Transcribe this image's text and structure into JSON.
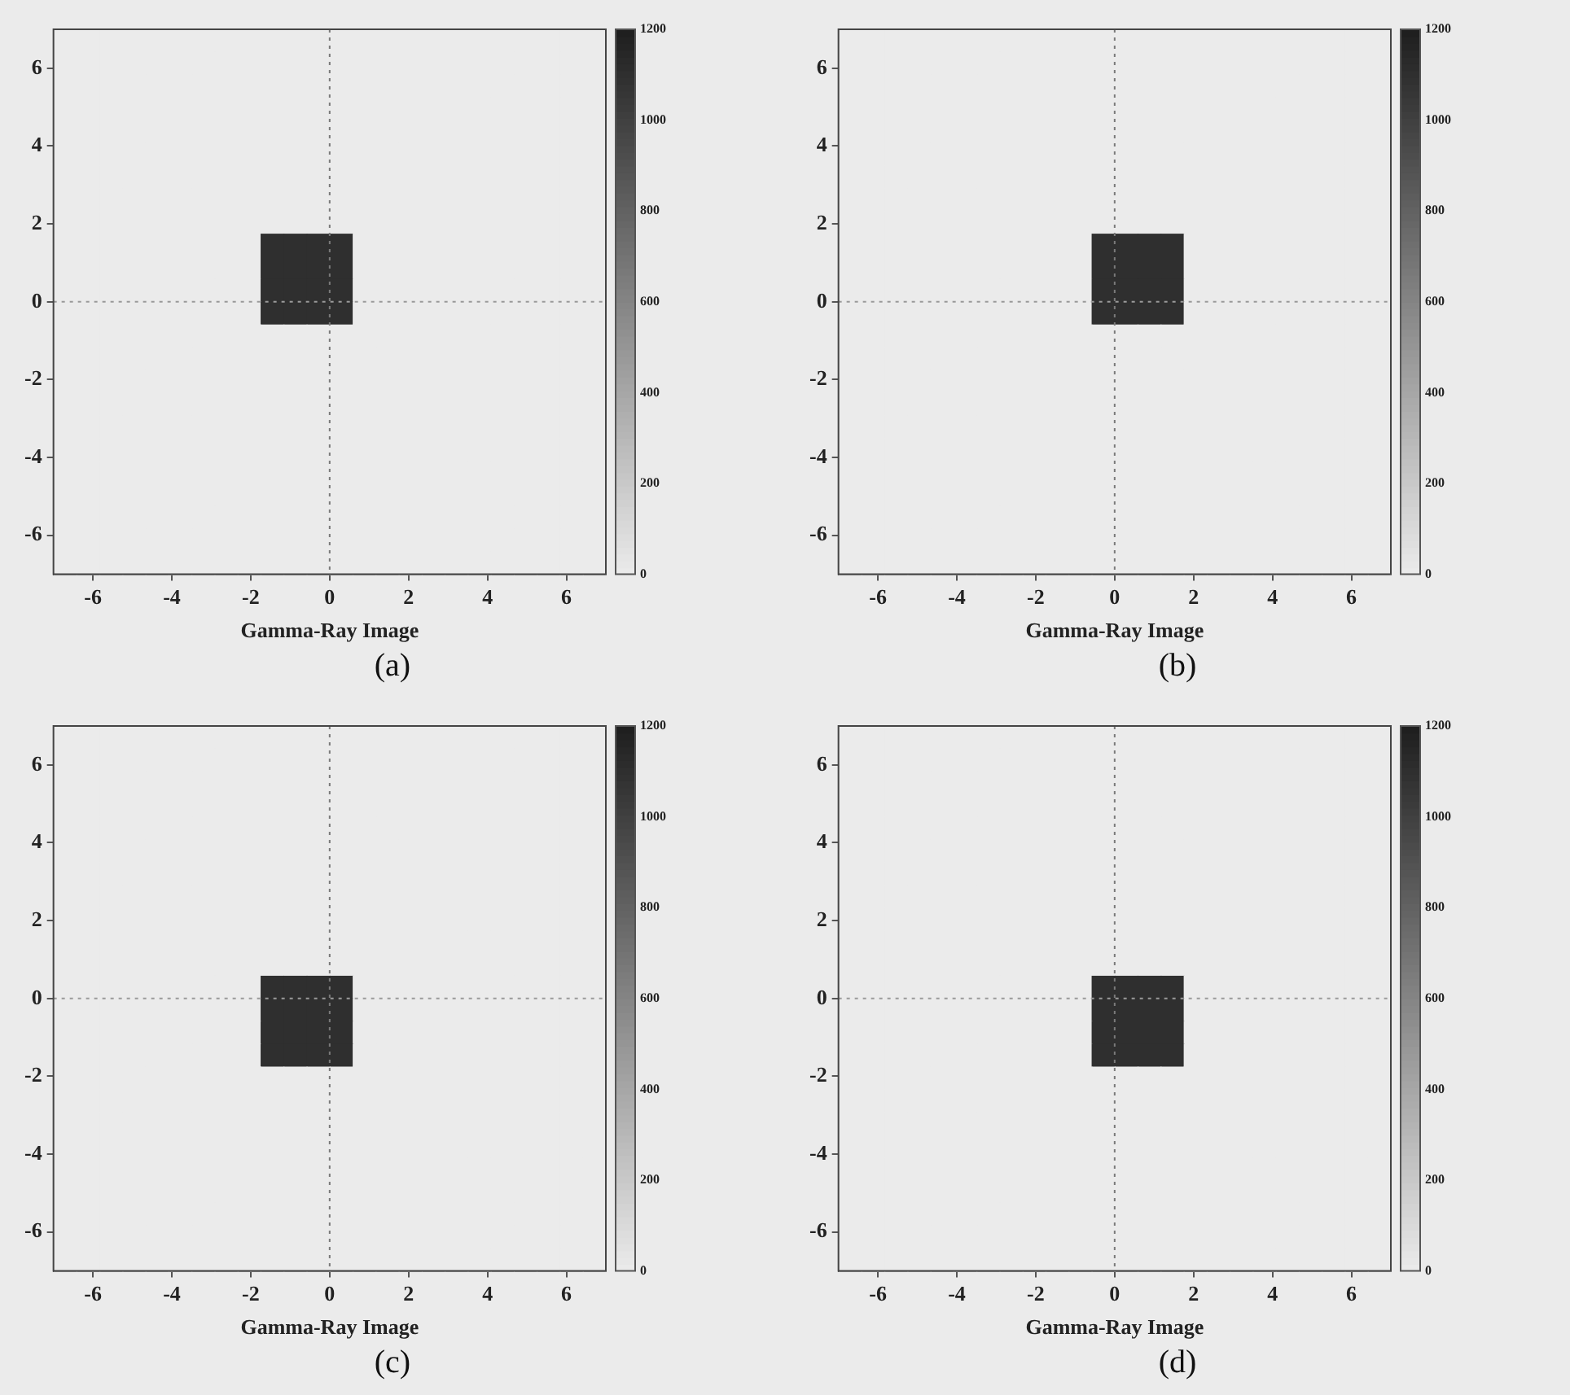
{
  "chart_data": [
    {
      "type": "heatmap",
      "xlabel": "Gamma-Ray Image",
      "annotations": [
        "(a)"
      ],
      "xlim": [
        -7,
        7
      ],
      "ylim": [
        -7,
        7
      ],
      "xticks": [
        -6,
        -4,
        -2,
        0,
        2,
        4,
        6
      ],
      "yticks": [
        -6,
        -4,
        -2,
        0,
        2,
        4,
        6
      ],
      "clim": [
        0,
        1200
      ],
      "cticks": [
        0,
        200,
        400,
        600,
        800,
        1000,
        1200
      ],
      "ref_lines": [
        {
          "axis": "x",
          "value": 0,
          "line_style": "dotted",
          "color": "#7a7a7a"
        },
        {
          "axis": "y",
          "value": 0,
          "line_style": "dotted",
          "color": "#9a9a9a"
        }
      ],
      "cells": [
        [
          0,
          0,
          0,
          0,
          0,
          0,
          0,
          0,
          0,
          0,
          0,
          0,
          0,
          0,
          0,
          0,
          0,
          0,
          0,
          0,
          0,
          0,
          0,
          0
        ],
        [
          0,
          0,
          0,
          0,
          0,
          0,
          0,
          0,
          0,
          0,
          0,
          0,
          0,
          0,
          0,
          0,
          0,
          0,
          0,
          0,
          0,
          0,
          0,
          0
        ],
        [
          0,
          0,
          0,
          0,
          0,
          0,
          0,
          0,
          0,
          0,
          0,
          0,
          0,
          0,
          0,
          0,
          0,
          0,
          0,
          0,
          0,
          0,
          0,
          0
        ],
        [
          0,
          0,
          0,
          0,
          0,
          0,
          0,
          0,
          0,
          0,
          0,
          0,
          0,
          0,
          0,
          0,
          0,
          0,
          0,
          0,
          0,
          0,
          0,
          0
        ],
        [
          0,
          0,
          0,
          0,
          0,
          0,
          0,
          0,
          0,
          0,
          0,
          0,
          0,
          0,
          0,
          0,
          0,
          0,
          0,
          0,
          0,
          0,
          0,
          0
        ],
        [
          0,
          0,
          0,
          0,
          0,
          0,
          0,
          0,
          0,
          0,
          0,
          0,
          0,
          0,
          0,
          0,
          0,
          0,
          0,
          0,
          0,
          0,
          0,
          0
        ],
        [
          0,
          0,
          0,
          0,
          0,
          0,
          0,
          0,
          0,
          0,
          0,
          0,
          0,
          0,
          0,
          0,
          0,
          0,
          0,
          0,
          0,
          0,
          0,
          0
        ],
        [
          0,
          0,
          0,
          0,
          0,
          0,
          0,
          0,
          0,
          0,
          0,
          0,
          0,
          0,
          0,
          0,
          0,
          0,
          0,
          0,
          0,
          0,
          0,
          0
        ],
        [
          0,
          0,
          0,
          0,
          0,
          0,
          0,
          0,
          0,
          0,
          0,
          0,
          0,
          0,
          0,
          0,
          0,
          0,
          0,
          0,
          0,
          0,
          0,
          0
        ],
        [
          0,
          0,
          0,
          0,
          0,
          0,
          0,
          0,
          0,
          1100,
          1100,
          1100,
          1100,
          0,
          0,
          0,
          0,
          0,
          0,
          0,
          0,
          0,
          0,
          0
        ],
        [
          0,
          0,
          0,
          0,
          0,
          0,
          0,
          0,
          0,
          1100,
          1100,
          1100,
          1100,
          0,
          0,
          0,
          0,
          0,
          0,
          0,
          0,
          0,
          0,
          0
        ],
        [
          0,
          0,
          0,
          0,
          0,
          0,
          0,
          0,
          0,
          1100,
          1100,
          1100,
          1100,
          0,
          0,
          0,
          0,
          0,
          0,
          0,
          0,
          0,
          0,
          0
        ],
        [
          0,
          0,
          0,
          0,
          0,
          0,
          0,
          0,
          0,
          1100,
          1100,
          1100,
          1100,
          0,
          0,
          0,
          0,
          0,
          0,
          0,
          0,
          0,
          0,
          0
        ],
        [
          0,
          0,
          0,
          0,
          0,
          0,
          0,
          0,
          0,
          0,
          0,
          0,
          0,
          0,
          0,
          0,
          0,
          0,
          0,
          0,
          0,
          0,
          0,
          0
        ],
        [
          0,
          0,
          0,
          0,
          0,
          0,
          0,
          0,
          0,
          0,
          0,
          0,
          0,
          0,
          0,
          0,
          0,
          0,
          0,
          0,
          0,
          0,
          0,
          0
        ],
        [
          0,
          0,
          0,
          0,
          0,
          0,
          0,
          0,
          0,
          0,
          0,
          0,
          0,
          0,
          0,
          0,
          0,
          0,
          0,
          0,
          0,
          0,
          0,
          0
        ],
        [
          0,
          0,
          0,
          0,
          0,
          0,
          0,
          0,
          0,
          0,
          0,
          0,
          0,
          0,
          0,
          0,
          0,
          0,
          0,
          0,
          0,
          0,
          0,
          0
        ],
        [
          0,
          0,
          0,
          0,
          0,
          0,
          0,
          0,
          0,
          0,
          0,
          0,
          0,
          0,
          0,
          0,
          0,
          0,
          0,
          0,
          0,
          0,
          0,
          0
        ],
        [
          0,
          0,
          0,
          0,
          0,
          0,
          0,
          0,
          0,
          0,
          0,
          0,
          0,
          0,
          0,
          0,
          0,
          0,
          0,
          0,
          0,
          0,
          0,
          0
        ],
        [
          0,
          0,
          0,
          0,
          0,
          0,
          0,
          0,
          0,
          0,
          0,
          0,
          0,
          0,
          0,
          0,
          0,
          0,
          0,
          0,
          0,
          0,
          0,
          0
        ],
        [
          0,
          0,
          0,
          0,
          0,
          0,
          0,
          0,
          0,
          0,
          0,
          0,
          0,
          0,
          0,
          0,
          0,
          0,
          0,
          0,
          0,
          0,
          0,
          0
        ],
        [
          0,
          0,
          0,
          0,
          0,
          0,
          0,
          0,
          0,
          0,
          0,
          0,
          0,
          0,
          0,
          0,
          0,
          0,
          0,
          0,
          0,
          0,
          0,
          0
        ],
        [
          0,
          0,
          0,
          0,
          0,
          0,
          0,
          0,
          0,
          0,
          0,
          0,
          0,
          0,
          0,
          0,
          0,
          0,
          0,
          0,
          0,
          0,
          0,
          0
        ],
        [
          0,
          0,
          0,
          0,
          0,
          0,
          0,
          0,
          0,
          0,
          0,
          0,
          0,
          0,
          0,
          0,
          0,
          0,
          0,
          0,
          0,
          0,
          0,
          0
        ]
      ]
    },
    {
      "type": "heatmap",
      "xlabel": "Gamma-Ray Image",
      "annotations": [
        "(b)"
      ],
      "xlim": [
        -7,
        7
      ],
      "ylim": [
        -7,
        7
      ],
      "xticks": [
        -6,
        -4,
        -2,
        0,
        2,
        4,
        6
      ],
      "yticks": [
        -6,
        -4,
        -2,
        0,
        2,
        4,
        6
      ],
      "clim": [
        0,
        1200
      ],
      "cticks": [
        0,
        200,
        400,
        600,
        800,
        1000,
        1200
      ],
      "ref_lines": [
        {
          "axis": "x",
          "value": 0,
          "line_style": "dotted",
          "color": "#7a7a7a"
        },
        {
          "axis": "y",
          "value": 0,
          "line_style": "dotted",
          "color": "#9a9a9a"
        }
      ],
      "cells": [
        [
          0,
          0,
          0,
          0,
          0,
          0,
          0,
          0,
          0,
          0,
          0,
          0,
          0,
          0,
          0,
          0,
          0,
          0,
          0,
          0,
          0,
          0,
          0,
          0
        ],
        [
          0,
          0,
          0,
          0,
          0,
          0,
          0,
          0,
          0,
          0,
          0,
          0,
          0,
          0,
          0,
          0,
          0,
          0,
          0,
          0,
          0,
          0,
          0,
          0
        ],
        [
          0,
          0,
          0,
          0,
          0,
          0,
          0,
          0,
          0,
          0,
          0,
          0,
          0,
          0,
          0,
          0,
          0,
          0,
          0,
          0,
          0,
          0,
          0,
          0
        ],
        [
          0,
          0,
          0,
          0,
          0,
          0,
          0,
          0,
          0,
          0,
          0,
          0,
          0,
          0,
          0,
          0,
          0,
          0,
          0,
          0,
          0,
          0,
          0,
          0
        ],
        [
          0,
          0,
          0,
          0,
          0,
          0,
          0,
          0,
          0,
          0,
          0,
          0,
          0,
          0,
          0,
          0,
          0,
          0,
          0,
          0,
          0,
          0,
          0,
          0
        ],
        [
          0,
          0,
          0,
          0,
          0,
          0,
          0,
          0,
          0,
          0,
          0,
          0,
          0,
          0,
          0,
          0,
          0,
          0,
          0,
          0,
          0,
          0,
          0,
          0
        ],
        [
          0,
          0,
          0,
          0,
          0,
          0,
          0,
          0,
          0,
          0,
          0,
          0,
          0,
          0,
          0,
          0,
          0,
          0,
          0,
          0,
          0,
          0,
          0,
          0
        ],
        [
          0,
          0,
          0,
          0,
          0,
          0,
          0,
          0,
          0,
          0,
          0,
          0,
          0,
          0,
          0,
          0,
          0,
          0,
          0,
          0,
          0,
          0,
          0,
          0
        ],
        [
          0,
          0,
          0,
          0,
          0,
          0,
          0,
          0,
          0,
          0,
          0,
          0,
          0,
          0,
          0,
          0,
          0,
          0,
          0,
          0,
          0,
          0,
          0,
          0
        ],
        [
          0,
          0,
          0,
          0,
          0,
          0,
          0,
          0,
          0,
          0,
          0,
          1100,
          1100,
          1100,
          1100,
          0,
          0,
          0,
          0,
          0,
          0,
          0,
          0,
          0
        ],
        [
          0,
          0,
          0,
          0,
          0,
          0,
          0,
          0,
          0,
          0,
          0,
          1100,
          1100,
          1100,
          1100,
          0,
          0,
          0,
          0,
          0,
          0,
          0,
          0,
          0
        ],
        [
          0,
          0,
          0,
          0,
          0,
          0,
          0,
          0,
          0,
          0,
          0,
          1100,
          1100,
          1100,
          1100,
          0,
          0,
          0,
          0,
          0,
          0,
          0,
          0,
          0
        ],
        [
          0,
          0,
          0,
          0,
          0,
          0,
          0,
          0,
          0,
          0,
          0,
          1100,
          1100,
          1100,
          1100,
          0,
          0,
          0,
          0,
          0,
          0,
          0,
          0,
          0
        ],
        [
          0,
          0,
          0,
          0,
          0,
          0,
          0,
          0,
          0,
          0,
          0,
          0,
          0,
          0,
          0,
          0,
          0,
          0,
          0,
          0,
          0,
          0,
          0,
          0
        ],
        [
          0,
          0,
          0,
          0,
          0,
          0,
          0,
          0,
          0,
          0,
          0,
          0,
          0,
          0,
          0,
          0,
          0,
          0,
          0,
          0,
          0,
          0,
          0,
          0
        ],
        [
          0,
          0,
          0,
          0,
          0,
          0,
          0,
          0,
          0,
          0,
          0,
          0,
          0,
          0,
          0,
          0,
          0,
          0,
          0,
          0,
          0,
          0,
          0,
          0
        ],
        [
          0,
          0,
          0,
          0,
          0,
          0,
          0,
          0,
          0,
          0,
          0,
          0,
          0,
          0,
          0,
          0,
          0,
          0,
          0,
          0,
          0,
          0,
          0,
          0
        ],
        [
          0,
          0,
          0,
          0,
          0,
          0,
          0,
          0,
          0,
          0,
          0,
          0,
          0,
          0,
          0,
          0,
          0,
          0,
          0,
          0,
          0,
          0,
          0,
          0
        ],
        [
          0,
          0,
          0,
          0,
          0,
          0,
          0,
          0,
          0,
          0,
          0,
          0,
          0,
          0,
          0,
          0,
          0,
          0,
          0,
          0,
          0,
          0,
          0,
          0
        ],
        [
          0,
          0,
          0,
          0,
          0,
          0,
          0,
          0,
          0,
          0,
          0,
          0,
          0,
          0,
          0,
          0,
          0,
          0,
          0,
          0,
          0,
          0,
          0,
          0
        ],
        [
          0,
          0,
          0,
          0,
          0,
          0,
          0,
          0,
          0,
          0,
          0,
          0,
          0,
          0,
          0,
          0,
          0,
          0,
          0,
          0,
          0,
          0,
          0,
          0
        ],
        [
          0,
          0,
          0,
          0,
          0,
          0,
          0,
          0,
          0,
          0,
          0,
          0,
          0,
          0,
          0,
          0,
          0,
          0,
          0,
          0,
          0,
          0,
          0,
          0
        ],
        [
          0,
          0,
          0,
          0,
          0,
          0,
          0,
          0,
          0,
          0,
          0,
          0,
          0,
          0,
          0,
          0,
          0,
          0,
          0,
          0,
          0,
          0,
          0,
          0
        ],
        [
          0,
          0,
          0,
          0,
          0,
          0,
          0,
          0,
          0,
          0,
          0,
          0,
          0,
          0,
          0,
          0,
          0,
          0,
          0,
          0,
          0,
          0,
          0,
          0
        ]
      ]
    },
    {
      "type": "heatmap",
      "xlabel": "Gamma-Ray Image",
      "annotations": [
        "(c)"
      ],
      "xlim": [
        -7,
        7
      ],
      "ylim": [
        -7,
        7
      ],
      "xticks": [
        -6,
        -4,
        -2,
        0,
        2,
        4,
        6
      ],
      "yticks": [
        -6,
        -4,
        -2,
        0,
        2,
        4,
        6
      ],
      "clim": [
        0,
        1200
      ],
      "cticks": [
        0,
        200,
        400,
        600,
        800,
        1000,
        1200
      ],
      "ref_lines": [
        {
          "axis": "x",
          "value": 0,
          "line_style": "dotted",
          "color": "#7a7a7a"
        },
        {
          "axis": "y",
          "value": 0,
          "line_style": "dotted",
          "color": "#9a9a9a"
        }
      ],
      "cells": [
        [
          0,
          0,
          0,
          0,
          0,
          0,
          0,
          0,
          0,
          0,
          0,
          0,
          0,
          0,
          0,
          0,
          0,
          0,
          0,
          0,
          0,
          0,
          0,
          0
        ],
        [
          0,
          0,
          0,
          0,
          0,
          0,
          0,
          0,
          0,
          0,
          0,
          0,
          0,
          0,
          0,
          0,
          0,
          0,
          0,
          0,
          0,
          0,
          0,
          0
        ],
        [
          0,
          0,
          0,
          0,
          0,
          0,
          0,
          0,
          0,
          0,
          0,
          0,
          0,
          0,
          0,
          0,
          0,
          0,
          0,
          0,
          0,
          0,
          0,
          0
        ],
        [
          0,
          0,
          0,
          0,
          0,
          0,
          0,
          0,
          0,
          0,
          0,
          0,
          0,
          0,
          0,
          0,
          0,
          0,
          0,
          0,
          0,
          0,
          0,
          0
        ],
        [
          0,
          0,
          0,
          0,
          0,
          0,
          0,
          0,
          0,
          0,
          0,
          0,
          0,
          0,
          0,
          0,
          0,
          0,
          0,
          0,
          0,
          0,
          0,
          0
        ],
        [
          0,
          0,
          0,
          0,
          0,
          0,
          0,
          0,
          0,
          0,
          0,
          0,
          0,
          0,
          0,
          0,
          0,
          0,
          0,
          0,
          0,
          0,
          0,
          0
        ],
        [
          0,
          0,
          0,
          0,
          0,
          0,
          0,
          0,
          0,
          0,
          0,
          0,
          0,
          0,
          0,
          0,
          0,
          0,
          0,
          0,
          0,
          0,
          0,
          0
        ],
        [
          0,
          0,
          0,
          0,
          0,
          0,
          0,
          0,
          0,
          0,
          0,
          0,
          0,
          0,
          0,
          0,
          0,
          0,
          0,
          0,
          0,
          0,
          0,
          0
        ],
        [
          0,
          0,
          0,
          0,
          0,
          0,
          0,
          0,
          0,
          0,
          0,
          0,
          0,
          0,
          0,
          0,
          0,
          0,
          0,
          0,
          0,
          0,
          0,
          0
        ],
        [
          0,
          0,
          0,
          0,
          0,
          0,
          0,
          0,
          0,
          0,
          0,
          0,
          0,
          0,
          0,
          0,
          0,
          0,
          0,
          0,
          0,
          0,
          0,
          0
        ],
        [
          0,
          0,
          0,
          0,
          0,
          0,
          0,
          0,
          0,
          0,
          0,
          0,
          0,
          0,
          0,
          0,
          0,
          0,
          0,
          0,
          0,
          0,
          0,
          0
        ],
        [
          0,
          0,
          0,
          0,
          0,
          0,
          0,
          0,
          0,
          1100,
          1100,
          1100,
          1100,
          0,
          0,
          0,
          0,
          0,
          0,
          0,
          0,
          0,
          0,
          0
        ],
        [
          0,
          0,
          0,
          0,
          0,
          0,
          0,
          0,
          0,
          1100,
          1100,
          1100,
          1100,
          0,
          0,
          0,
          0,
          0,
          0,
          0,
          0,
          0,
          0,
          0
        ],
        [
          0,
          0,
          0,
          0,
          0,
          0,
          0,
          0,
          0,
          1100,
          1100,
          1100,
          1100,
          0,
          0,
          0,
          0,
          0,
          0,
          0,
          0,
          0,
          0,
          0
        ],
        [
          0,
          0,
          0,
          0,
          0,
          0,
          0,
          0,
          0,
          1100,
          1100,
          1100,
          1100,
          0,
          0,
          0,
          0,
          0,
          0,
          0,
          0,
          0,
          0,
          0
        ],
        [
          0,
          0,
          0,
          0,
          0,
          0,
          0,
          0,
          0,
          0,
          0,
          0,
          0,
          0,
          0,
          0,
          0,
          0,
          0,
          0,
          0,
          0,
          0,
          0
        ],
        [
          0,
          0,
          0,
          0,
          0,
          0,
          0,
          0,
          0,
          0,
          0,
          0,
          0,
          0,
          0,
          0,
          0,
          0,
          0,
          0,
          0,
          0,
          0,
          0
        ],
        [
          0,
          0,
          0,
          0,
          0,
          0,
          0,
          0,
          0,
          0,
          0,
          0,
          0,
          0,
          0,
          0,
          0,
          0,
          0,
          0,
          0,
          0,
          0,
          0
        ],
        [
          0,
          0,
          0,
          0,
          0,
          0,
          0,
          0,
          0,
          0,
          0,
          0,
          0,
          0,
          0,
          0,
          0,
          0,
          0,
          0,
          0,
          0,
          0,
          0
        ],
        [
          0,
          0,
          0,
          0,
          0,
          0,
          0,
          0,
          0,
          0,
          0,
          0,
          0,
          0,
          0,
          0,
          0,
          0,
          0,
          0,
          0,
          0,
          0,
          0
        ],
        [
          0,
          0,
          0,
          0,
          0,
          0,
          0,
          0,
          0,
          0,
          0,
          0,
          0,
          0,
          0,
          0,
          0,
          0,
          0,
          0,
          0,
          0,
          0,
          0
        ],
        [
          0,
          0,
          0,
          0,
          0,
          0,
          0,
          0,
          0,
          0,
          0,
          0,
          0,
          0,
          0,
          0,
          0,
          0,
          0,
          0,
          0,
          0,
          0,
          0
        ],
        [
          0,
          0,
          0,
          0,
          0,
          0,
          0,
          0,
          0,
          0,
          0,
          0,
          0,
          0,
          0,
          0,
          0,
          0,
          0,
          0,
          0,
          0,
          0,
          0
        ],
        [
          0,
          0,
          0,
          0,
          0,
          0,
          0,
          0,
          0,
          0,
          0,
          0,
          0,
          0,
          0,
          0,
          0,
          0,
          0,
          0,
          0,
          0,
          0,
          0
        ]
      ]
    },
    {
      "type": "heatmap",
      "xlabel": "Gamma-Ray Image",
      "annotations": [
        "(d)"
      ],
      "xlim": [
        -7,
        7
      ],
      "ylim": [
        -7,
        7
      ],
      "xticks": [
        -6,
        -4,
        -2,
        0,
        2,
        4,
        6
      ],
      "yticks": [
        -6,
        -4,
        -2,
        0,
        2,
        4,
        6
      ],
      "clim": [
        0,
        1200
      ],
      "cticks": [
        0,
        200,
        400,
        600,
        800,
        1000,
        1200
      ],
      "ref_lines": [
        {
          "axis": "x",
          "value": 0,
          "line_style": "dotted",
          "color": "#7a7a7a"
        },
        {
          "axis": "y",
          "value": 0,
          "line_style": "dotted",
          "color": "#9a9a9a"
        }
      ],
      "cells": [
        [
          0,
          0,
          0,
          0,
          0,
          0,
          0,
          0,
          0,
          0,
          0,
          0,
          0,
          0,
          0,
          0,
          0,
          0,
          0,
          0,
          0,
          0,
          0,
          0
        ],
        [
          0,
          0,
          0,
          0,
          0,
          0,
          0,
          0,
          0,
          0,
          0,
          0,
          0,
          0,
          0,
          0,
          0,
          0,
          0,
          0,
          0,
          0,
          0,
          0
        ],
        [
          0,
          0,
          0,
          0,
          0,
          0,
          0,
          0,
          0,
          0,
          0,
          0,
          0,
          0,
          0,
          0,
          0,
          0,
          0,
          0,
          0,
          0,
          0,
          0
        ],
        [
          0,
          0,
          0,
          0,
          0,
          0,
          0,
          0,
          0,
          0,
          0,
          0,
          0,
          0,
          0,
          0,
          0,
          0,
          0,
          0,
          0,
          0,
          0,
          0
        ],
        [
          0,
          0,
          0,
          0,
          0,
          0,
          0,
          0,
          0,
          0,
          0,
          0,
          0,
          0,
          0,
          0,
          0,
          0,
          0,
          0,
          0,
          0,
          0,
          0
        ],
        [
          0,
          0,
          0,
          0,
          0,
          0,
          0,
          0,
          0,
          0,
          0,
          0,
          0,
          0,
          0,
          0,
          0,
          0,
          0,
          0,
          0,
          0,
          0,
          0
        ],
        [
          0,
          0,
          0,
          0,
          0,
          0,
          0,
          0,
          0,
          0,
          0,
          0,
          0,
          0,
          0,
          0,
          0,
          0,
          0,
          0,
          0,
          0,
          0,
          0
        ],
        [
          0,
          0,
          0,
          0,
          0,
          0,
          0,
          0,
          0,
          0,
          0,
          0,
          0,
          0,
          0,
          0,
          0,
          0,
          0,
          0,
          0,
          0,
          0,
          0
        ],
        [
          0,
          0,
          0,
          0,
          0,
          0,
          0,
          0,
          0,
          0,
          0,
          0,
          0,
          0,
          0,
          0,
          0,
          0,
          0,
          0,
          0,
          0,
          0,
          0
        ],
        [
          0,
          0,
          0,
          0,
          0,
          0,
          0,
          0,
          0,
          0,
          0,
          0,
          0,
          0,
          0,
          0,
          0,
          0,
          0,
          0,
          0,
          0,
          0,
          0
        ],
        [
          0,
          0,
          0,
          0,
          0,
          0,
          0,
          0,
          0,
          0,
          0,
          0,
          0,
          0,
          0,
          0,
          0,
          0,
          0,
          0,
          0,
          0,
          0,
          0
        ],
        [
          0,
          0,
          0,
          0,
          0,
          0,
          0,
          0,
          0,
          0,
          0,
          1100,
          1100,
          1100,
          1100,
          0,
          0,
          0,
          0,
          0,
          0,
          0,
          0,
          0
        ],
        [
          0,
          0,
          0,
          0,
          0,
          0,
          0,
          0,
          0,
          0,
          0,
          1100,
          1100,
          1100,
          1100,
          0,
          0,
          0,
          0,
          0,
          0,
          0,
          0,
          0
        ],
        [
          0,
          0,
          0,
          0,
          0,
          0,
          0,
          0,
          0,
          0,
          0,
          1100,
          1100,
          1100,
          1100,
          0,
          0,
          0,
          0,
          0,
          0,
          0,
          0,
          0
        ],
        [
          0,
          0,
          0,
          0,
          0,
          0,
          0,
          0,
          0,
          0,
          0,
          1100,
          1100,
          1100,
          1100,
          0,
          0,
          0,
          0,
          0,
          0,
          0,
          0,
          0
        ],
        [
          0,
          0,
          0,
          0,
          0,
          0,
          0,
          0,
          0,
          0,
          0,
          0,
          0,
          0,
          0,
          0,
          0,
          0,
          0,
          0,
          0,
          0,
          0,
          0
        ],
        [
          0,
          0,
          0,
          0,
          0,
          0,
          0,
          0,
          0,
          0,
          0,
          0,
          0,
          0,
          0,
          0,
          0,
          0,
          0,
          0,
          0,
          0,
          0,
          0
        ],
        [
          0,
          0,
          0,
          0,
          0,
          0,
          0,
          0,
          0,
          0,
          0,
          0,
          0,
          0,
          0,
          0,
          0,
          0,
          0,
          0,
          0,
          0,
          0,
          0
        ],
        [
          0,
          0,
          0,
          0,
          0,
          0,
          0,
          0,
          0,
          0,
          0,
          0,
          0,
          0,
          0,
          0,
          0,
          0,
          0,
          0,
          0,
          0,
          0,
          0
        ],
        [
          0,
          0,
          0,
          0,
          0,
          0,
          0,
          0,
          0,
          0,
          0,
          0,
          0,
          0,
          0,
          0,
          0,
          0,
          0,
          0,
          0,
          0,
          0,
          0
        ],
        [
          0,
          0,
          0,
          0,
          0,
          0,
          0,
          0,
          0,
          0,
          0,
          0,
          0,
          0,
          0,
          0,
          0,
          0,
          0,
          0,
          0,
          0,
          0,
          0
        ],
        [
          0,
          0,
          0,
          0,
          0,
          0,
          0,
          0,
          0,
          0,
          0,
          0,
          0,
          0,
          0,
          0,
          0,
          0,
          0,
          0,
          0,
          0,
          0,
          0
        ],
        [
          0,
          0,
          0,
          0,
          0,
          0,
          0,
          0,
          0,
          0,
          0,
          0,
          0,
          0,
          0,
          0,
          0,
          0,
          0,
          0,
          0,
          0,
          0,
          0
        ],
        [
          0,
          0,
          0,
          0,
          0,
          0,
          0,
          0,
          0,
          0,
          0,
          0,
          0,
          0,
          0,
          0,
          0,
          0,
          0,
          0,
          0,
          0,
          0,
          0
        ]
      ]
    }
  ]
}
